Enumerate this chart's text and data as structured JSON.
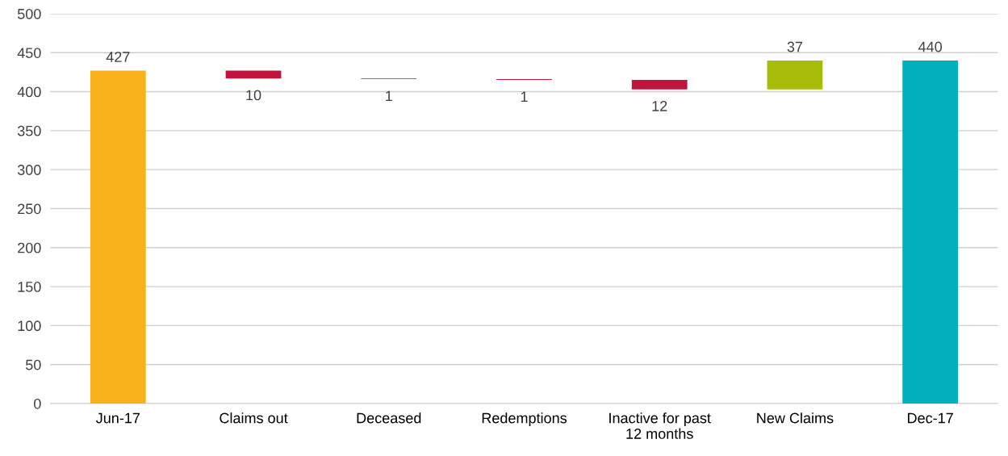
{
  "chart_data": {
    "type": "bar",
    "categories": [
      "Jun-17",
      "Claims out",
      "Deceased",
      "Redemptions",
      "Inactive for past\n12 months",
      "New Claims",
      "Dec-17"
    ],
    "values": [
      427,
      10,
      1,
      1,
      12,
      37,
      440
    ],
    "base": [
      0,
      417,
      416,
      415,
      403,
      403,
      0
    ],
    "colors": [
      "#f7b21b",
      "#c0143c",
      "#c0143c",
      "#c0143c",
      "#c0143c",
      "#a8bd0a",
      "#00b0bc"
    ],
    "ylim": [
      0,
      500
    ],
    "yticks": [
      0,
      50,
      100,
      150,
      200,
      250,
      300,
      350,
      400,
      450,
      500
    ],
    "grid": "y",
    "data_labels": true
  }
}
